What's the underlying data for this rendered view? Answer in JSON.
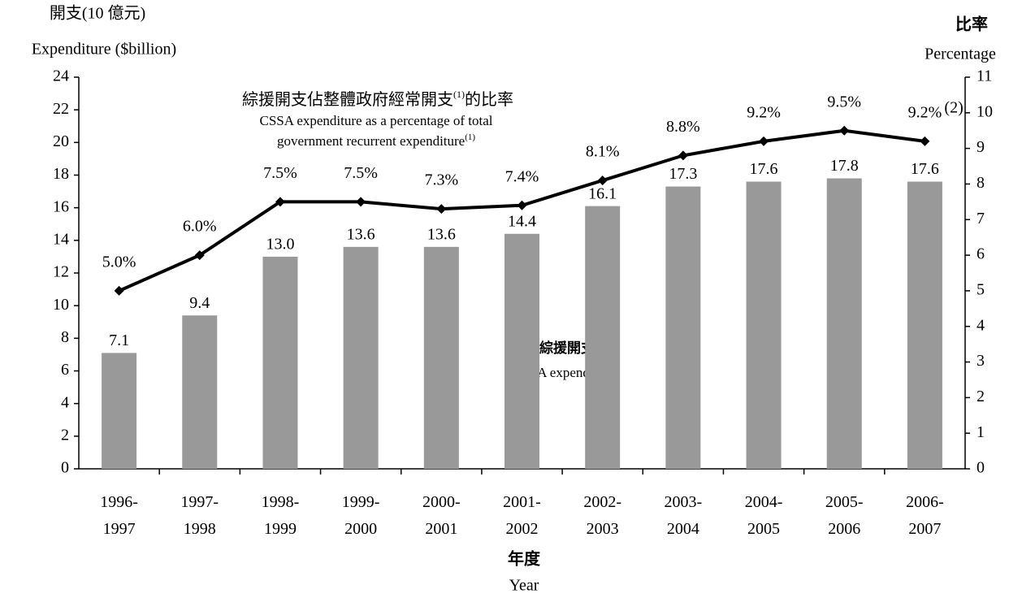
{
  "chart_data": {
    "type": "bar_line",
    "categories": [
      "1996-1997",
      "1997-1998",
      "1998-1999",
      "1999-2000",
      "2000-2001",
      "2001-2002",
      "2002-2003",
      "2003-2004",
      "2004-2005",
      "2005-2006",
      "2006-2007"
    ],
    "series": [
      {
        "name": "CSSA expenditure",
        "type": "bar",
        "color": "#999999",
        "values": [
          7.1,
          9.4,
          13.0,
          13.6,
          13.6,
          14.4,
          16.1,
          17.3,
          17.6,
          17.8,
          17.6
        ],
        "value_labels": [
          "7.1",
          "9.4",
          "13.0",
          "13.6",
          "13.6",
          "14.4",
          "16.1",
          "17.3",
          "17.6",
          "17.8",
          "17.6"
        ]
      },
      {
        "type": "line",
        "axis": "y2",
        "color": "#000000",
        "values": [
          5.0,
          6.0,
          7.5,
          7.5,
          7.3,
          7.4,
          8.1,
          8.8,
          9.2,
          9.5,
          9.2
        ],
        "value_labels": [
          "5.0%",
          "6.0%",
          "7.5%",
          "7.5%",
          "7.3%",
          "7.4%",
          "8.1%",
          "8.8%",
          "9.2%",
          "9.5%",
          "9.2%"
        ]
      }
    ],
    "bar_label_zh": "綜援開支",
    "line_label": {
      "zh": [
        "綜援開支佔整體政府經常開支",
        "(1)",
        "的比率"
      ],
      "en": [
        "CSSA expenditure as a percentage of total",
        "government recurrent expenditure",
        "(1)"
      ]
    },
    "last_note": "(2)",
    "y_label": {
      "zh": "開支(10 億元)",
      "en": "Expenditure ($billion)"
    },
    "y2_label": {
      "zh": "比率",
      "en": "Percentage"
    },
    "x_label": {
      "zh": "年度",
      "en": "Year"
    },
    "ylim": [
      0,
      24
    ],
    "yticks": [
      0,
      2,
      4,
      6,
      8,
      10,
      12,
      14,
      16,
      18,
      20,
      22,
      24
    ],
    "y2lim": [
      0,
      11
    ],
    "y2ticks": [
      0,
      1,
      2,
      3,
      4,
      5,
      6,
      7,
      8,
      9,
      10,
      11
    ],
    "grid": false
  }
}
